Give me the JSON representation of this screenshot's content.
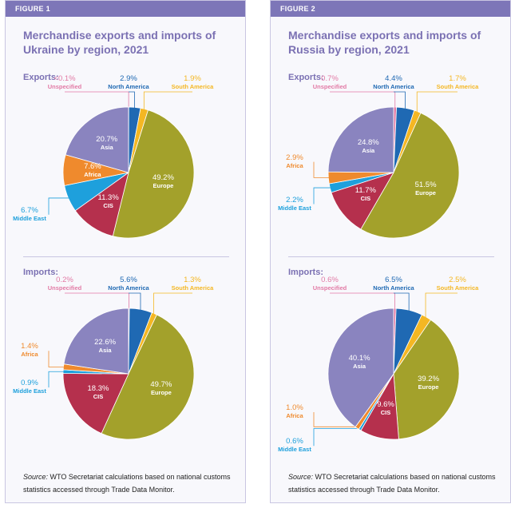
{
  "figures": [
    {
      "label": "FIGURE 1",
      "title": "Merchandise exports and imports of Ukraine by region, 2021",
      "source_label": "Source:",
      "source": "WTO Secretariat calculations based on national customs statistics accessed through Trade Data Monitor."
    },
    {
      "label": "FIGURE 2",
      "title": "Merchandise exports and imports of Russia by region, 2021",
      "source_label": "Source:",
      "source": "WTO Secretariat calculations based on national customs statistics accessed through Trade Data Monitor."
    }
  ],
  "chart_data": [
    {
      "type": "pie",
      "title": "Exports:",
      "categories": [
        "Unspecified",
        "North America",
        "South America",
        "Europe",
        "CIS",
        "Middle East",
        "Africa",
        "Asia"
      ],
      "values": [
        0.05,
        2.9,
        1.9,
        49.2,
        11.3,
        6.7,
        7.6,
        20.7
      ],
      "value_labels": [
        "<0.1%",
        "2.9%",
        "1.9%",
        "49.2%",
        "11.3%",
        "6.7%",
        "7.6%",
        "20.7%"
      ],
      "colors": [
        "#e27aa5",
        "#1f69b3",
        "#f4b723",
        "#a3a12b",
        "#b5304d",
        "#1ea0dc",
        "#ef8a2d",
        "#8a84bf"
      ]
    },
    {
      "type": "pie",
      "title": "Imports:",
      "categories": [
        "Unspecified",
        "North America",
        "South America",
        "Europe",
        "CIS",
        "Middle East",
        "Africa",
        "Asia"
      ],
      "values": [
        0.2,
        5.6,
        1.3,
        49.7,
        18.3,
        0.9,
        1.4,
        22.6
      ],
      "value_labels": [
        "0.2%",
        "5.6%",
        "1.3%",
        "49.7%",
        "18.3%",
        "0.9%",
        "1.4%",
        "22.6%"
      ],
      "colors": [
        "#e27aa5",
        "#1f69b3",
        "#f4b723",
        "#a3a12b",
        "#b5304d",
        "#1ea0dc",
        "#ef8a2d",
        "#8a84bf"
      ]
    },
    {
      "type": "pie",
      "title": "Exports:",
      "categories": [
        "Unspecified",
        "North America",
        "South America",
        "Europe",
        "CIS",
        "Middle East",
        "Africa",
        "Asia"
      ],
      "values": [
        0.7,
        4.4,
        1.7,
        51.5,
        11.7,
        2.2,
        2.9,
        24.8
      ],
      "value_labels": [
        "0.7%",
        "4.4%",
        "1.7%",
        "51.5%",
        "11.7%",
        "2.2%",
        "2.9%",
        "24.8%"
      ],
      "colors": [
        "#e27aa5",
        "#1f69b3",
        "#f4b723",
        "#a3a12b",
        "#b5304d",
        "#1ea0dc",
        "#ef8a2d",
        "#8a84bf"
      ]
    },
    {
      "type": "pie",
      "title": "Imports:",
      "categories": [
        "Unspecified",
        "North America",
        "South America",
        "Europe",
        "CIS",
        "Middle East",
        "Africa",
        "Asia"
      ],
      "values": [
        0.6,
        6.5,
        2.5,
        39.2,
        9.6,
        0.6,
        1.0,
        40.1
      ],
      "value_labels": [
        "0.6%",
        "6.5%",
        "2.5%",
        "39.2%",
        "9.6%",
        "0.6%",
        "1.0%",
        "40.1%"
      ],
      "colors": [
        "#e27aa5",
        "#1f69b3",
        "#f4b723",
        "#a3a12b",
        "#b5304d",
        "#1ea0dc",
        "#ef8a2d",
        "#8a84bf"
      ]
    }
  ]
}
